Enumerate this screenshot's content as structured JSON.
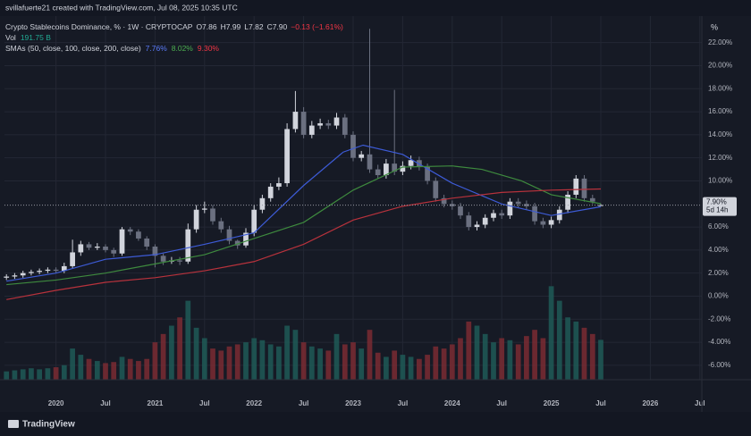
{
  "header": {
    "credit": "svillafuerte21 created with TradingView.com, Jul 08, 2025 10:35 UTC",
    "symbol": "Crypto Stablecoins Dominance, % · 1W · CRYPTOCAP",
    "ohlc": [
      "O7.86",
      "H7.99",
      "L7.82",
      "C7.90",
      "−0.13 (−1.61%)"
    ],
    "vol_label": "Vol",
    "vol_value": "191.75 B",
    "sma_label": "SMAs (50, close, 100, close, 200, close)",
    "sma_values": [
      "7.76%",
      "8.02%",
      "9.30%"
    ]
  },
  "chart_data": {
    "type": "candlestick",
    "x": [
      2019.5,
      2019.583,
      2019.667,
      2019.75,
      2019.833,
      2019.917,
      2020,
      2020.083,
      2020.167,
      2020.25,
      2020.333,
      2020.417,
      2020.5,
      2020.583,
      2020.667,
      2020.75,
      2020.833,
      2020.917,
      2021,
      2021.083,
      2021.167,
      2021.25,
      2021.333,
      2021.417,
      2021.5,
      2021.583,
      2021.667,
      2021.75,
      2021.833,
      2021.917,
      2022,
      2022.083,
      2022.167,
      2022.25,
      2022.333,
      2022.417,
      2022.5,
      2022.583,
      2022.667,
      2022.75,
      2022.833,
      2022.917,
      2023,
      2023.083,
      2023.167,
      2023.25,
      2023.333,
      2023.417,
      2023.5,
      2023.583,
      2023.667,
      2023.75,
      2023.833,
      2023.917,
      2024,
      2024.083,
      2024.167,
      2024.25,
      2024.333,
      2024.417,
      2024.5,
      2024.583,
      2024.667,
      2024.75,
      2024.833,
      2024.917,
      2025,
      2025.083,
      2025.167,
      2025.25,
      2025.333,
      2025.417,
      2025.5
    ],
    "open": [
      1.6,
      1.7,
      1.8,
      2.0,
      2.1,
      2.2,
      2.3,
      2.2,
      2.6,
      3.8,
      4.5,
      4.2,
      4.3,
      4.0,
      3.7,
      5.8,
      5.6,
      5.0,
      4.3,
      3.5,
      3.0,
      3.1,
      3.0,
      5.8,
      7.5,
      7.6,
      6.5,
      5.8,
      4.8,
      4.4,
      5.5,
      7.5,
      8.5,
      9.5,
      9.8,
      14.5,
      16.0,
      14.0,
      14.8,
      15.0,
      14.8,
      15.5,
      14.0,
      12.0,
      12.3,
      11.0,
      10.5,
      11.5,
      10.8,
      11.3,
      11.8,
      11.2,
      10.0,
      8.5,
      8.0,
      7.8,
      7.0,
      6.0,
      6.2,
      6.8,
      7.2,
      7.0,
      8.2,
      8.0,
      7.8,
      6.5,
      6.2,
      6.6,
      7.5,
      8.8,
      10.2,
      8.5,
      7.86
    ],
    "high": [
      1.9,
      2.0,
      2.2,
      2.3,
      2.4,
      2.5,
      2.5,
      2.9,
      4.9,
      4.8,
      4.7,
      4.6,
      4.5,
      4.2,
      6.0,
      6.0,
      5.8,
      5.2,
      4.5,
      3.7,
      3.4,
      3.4,
      6.3,
      7.9,
      8.2,
      7.9,
      6.8,
      6.1,
      4.9,
      5.9,
      7.9,
      8.8,
      9.8,
      10.3,
      15.0,
      17.8,
      16.4,
      15.2,
      15.4,
      15.3,
      15.9,
      15.8,
      14.3,
      12.6,
      23.2,
      11.4,
      11.9,
      17.9,
      11.7,
      12.2,
      12.1,
      11.5,
      10.3,
      8.8,
      8.3,
      8.1,
      7.3,
      6.5,
      7.1,
      7.5,
      7.5,
      8.5,
      8.5,
      8.3,
      8.1,
      6.8,
      6.9,
      7.8,
      9.1,
      10.5,
      10.5,
      8.8,
      7.99
    ],
    "low": [
      1.4,
      1.5,
      1.6,
      1.8,
      1.9,
      2.0,
      2.0,
      2.0,
      2.4,
      3.5,
      4.0,
      4.0,
      3.8,
      3.4,
      3.5,
      5.3,
      4.8,
      4.0,
      2.5,
      2.7,
      2.8,
      2.7,
      2.8,
      5.5,
      7.2,
      6.2,
      5.5,
      4.5,
      4.1,
      4.2,
      5.2,
      7.2,
      8.2,
      9.2,
      9.5,
      14.2,
      13.7,
      13.7,
      14.5,
      14.5,
      14.5,
      13.7,
      11.7,
      11.7,
      10.7,
      10.2,
      10.2,
      10.5,
      10.5,
      11.0,
      10.9,
      9.7,
      8.2,
      7.7,
      7.5,
      6.7,
      5.7,
      5.7,
      5.9,
      6.5,
      6.7,
      6.7,
      7.7,
      7.5,
      6.2,
      5.9,
      5.9,
      6.3,
      7.2,
      8.5,
      8.2,
      8.0,
      7.82
    ],
    "close": [
      1.7,
      1.8,
      2.0,
      2.1,
      2.2,
      2.3,
      2.2,
      2.6,
      3.8,
      4.5,
      4.2,
      4.3,
      4.0,
      3.7,
      5.8,
      5.6,
      5.0,
      4.3,
      3.5,
      3.0,
      3.1,
      3.0,
      5.8,
      7.5,
      7.6,
      6.5,
      5.8,
      4.8,
      4.4,
      5.5,
      7.5,
      8.5,
      9.5,
      9.8,
      14.5,
      16.0,
      14.0,
      14.8,
      15.0,
      14.8,
      15.5,
      14.0,
      12.0,
      12.3,
      11.0,
      10.5,
      11.5,
      10.8,
      11.3,
      11.8,
      11.2,
      10.0,
      8.5,
      8.0,
      7.8,
      7.0,
      6.0,
      6.2,
      6.8,
      7.2,
      7.0,
      8.2,
      8.0,
      7.8,
      6.5,
      6.2,
      6.6,
      7.5,
      8.8,
      10.2,
      8.5,
      8.2,
      7.9
    ],
    "up_color": "#d1d4dc",
    "down_color": "#6b7080",
    "volume": {
      "axis": "y2",
      "up_color": "#1e5b57",
      "down_color": "#7a2c33",
      "values": [
        40,
        45,
        50,
        55,
        50,
        55,
        60,
        70,
        150,
        120,
        100,
        90,
        80,
        85,
        110,
        100,
        90,
        100,
        180,
        220,
        260,
        300,
        380,
        250,
        200,
        150,
        140,
        160,
        170,
        180,
        200,
        190,
        170,
        160,
        260,
        240,
        180,
        160,
        150,
        140,
        220,
        170,
        180,
        150,
        240,
        130,
        110,
        140,
        120,
        110,
        100,
        120,
        160,
        150,
        170,
        200,
        280,
        260,
        220,
        180,
        200,
        190,
        170,
        210,
        240,
        200,
        450,
        380,
        300,
        280,
        250,
        220,
        191.75
      ]
    },
    "series": [
      {
        "color": "#3d5bd6",
        "x": [
          2019.5,
          2020.0,
          2020.5,
          2021.0,
          2021.5,
          2022.0,
          2022.5,
          2022.9,
          2023.1,
          2023.5,
          2024.0,
          2024.5,
          2025.0,
          2025.5
        ],
        "values": [
          1.3,
          2.0,
          3.2,
          3.6,
          4.5,
          5.5,
          9.6,
          12.5,
          13.1,
          12.3,
          9.8,
          8.0,
          7.0,
          7.76
        ]
      },
      {
        "color": "#3e8a3e",
        "x": [
          2019.5,
          2020.0,
          2020.5,
          2021.0,
          2021.5,
          2022.0,
          2022.5,
          2023.0,
          2023.5,
          2024.0,
          2024.3,
          2024.7,
          2025.0,
          2025.5
        ],
        "values": [
          1.0,
          1.4,
          2.0,
          2.8,
          3.6,
          5.0,
          6.4,
          9.2,
          11.2,
          11.3,
          11.0,
          10.0,
          8.8,
          8.02
        ]
      },
      {
        "color": "#b8323c",
        "x": [
          2019.5,
          2020.0,
          2020.5,
          2021.0,
          2021.5,
          2022.0,
          2022.5,
          2023.0,
          2023.5,
          2024.0,
          2024.5,
          2025.0,
          2025.5
        ],
        "values": [
          -0.3,
          0.5,
          1.2,
          1.6,
          2.2,
          3.0,
          4.5,
          6.6,
          7.8,
          8.5,
          9.0,
          9.2,
          9.3
        ]
      }
    ],
    "xlim": [
      2019.48,
      2026.52
    ],
    "ylim": [
      -7.25,
      24.3
    ],
    "y2lim": [
      0,
      1750
    ],
    "xticks": [
      2020,
      {
        "value": 2020.5,
        "label": "Jul"
      },
      2021,
      {
        "value": 2021.5,
        "label": "Jul"
      },
      2022,
      {
        "value": 2022.5,
        "label": "Jul"
      },
      2023,
      {
        "value": 2023.5,
        "label": "Jul"
      },
      2024,
      {
        "value": 2024.5,
        "label": "Jul"
      },
      2025,
      {
        "value": 2025.5,
        "label": "Jul"
      },
      2026,
      {
        "value": 2026.5,
        "label": "Jul"
      }
    ],
    "yticks": [
      {
        "value": 22,
        "label": "22.00%"
      },
      {
        "value": 20,
        "label": "20.00%"
      },
      {
        "value": 18,
        "label": "18.00%"
      },
      {
        "value": 16,
        "label": "16.00%"
      },
      {
        "value": 14,
        "label": "14.00%"
      },
      {
        "value": 12,
        "label": "12.00%"
      },
      {
        "value": 10,
        "label": "10.00%"
      },
      {
        "value": 6,
        "label": "6.00%"
      },
      {
        "value": 4,
        "label": "4.00%"
      },
      {
        "value": 2,
        "label": "2.00%"
      },
      {
        "value": 0,
        "label": "0.00%"
      },
      {
        "value": -2,
        "label": "-2.00%"
      },
      {
        "value": -4,
        "label": "-4.00%"
      },
      {
        "value": -6,
        "label": "-6.00%"
      }
    ],
    "grid": true,
    "unit_label": "%",
    "last_price": {
      "value": 7.9,
      "label": "7.90%",
      "countdown": "5d 14h"
    }
  },
  "footer": {
    "brand": "TradingView"
  }
}
